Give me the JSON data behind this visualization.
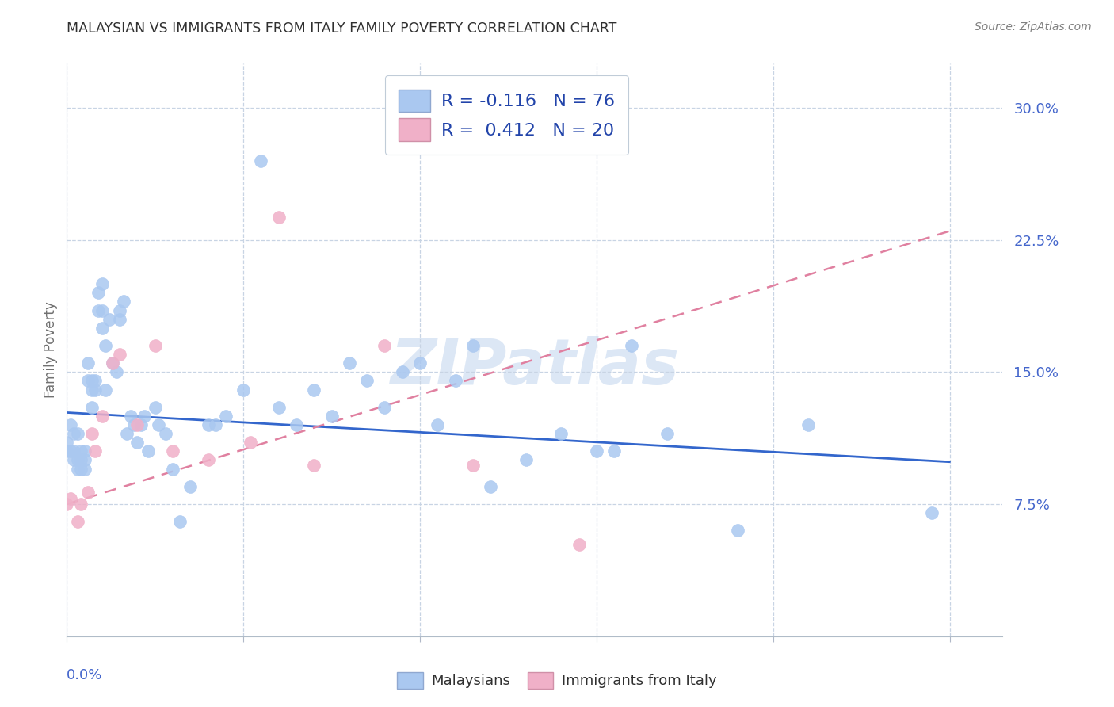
{
  "title": "MALAYSIAN VS IMMIGRANTS FROM ITALY FAMILY POVERTY CORRELATION CHART",
  "source": "Source: ZipAtlas.com",
  "ylabel": "Family Poverty",
  "watermark": "ZIPatlas",
  "r_malaysian": -0.116,
  "n_malaysian": 76,
  "r_italy": 0.412,
  "n_italy": 20,
  "ytick_labels": [
    "7.5%",
    "15.0%",
    "22.5%",
    "30.0%"
  ],
  "ytick_values": [
    0.075,
    0.15,
    0.225,
    0.3
  ],
  "xlim": [
    0.0,
    0.265
  ],
  "ylim": [
    0.0,
    0.325
  ],
  "legend_labels": [
    "Malaysians",
    "Immigrants from Italy"
  ],
  "color_malaysian": "#aac8f0",
  "color_italy": "#f0b0c8",
  "line_color_malaysian": "#3366cc",
  "line_color_italy": "#e080a0",
  "malaysian_x": [
    0.0,
    0.0,
    0.001,
    0.001,
    0.002,
    0.002,
    0.002,
    0.003,
    0.003,
    0.003,
    0.004,
    0.004,
    0.004,
    0.005,
    0.005,
    0.005,
    0.006,
    0.006,
    0.007,
    0.007,
    0.007,
    0.008,
    0.008,
    0.009,
    0.009,
    0.01,
    0.01,
    0.01,
    0.011,
    0.011,
    0.012,
    0.013,
    0.014,
    0.015,
    0.015,
    0.016,
    0.017,
    0.018,
    0.019,
    0.02,
    0.021,
    0.022,
    0.023,
    0.025,
    0.026,
    0.028,
    0.03,
    0.032,
    0.035,
    0.04,
    0.042,
    0.045,
    0.05,
    0.055,
    0.06,
    0.065,
    0.07,
    0.075,
    0.08,
    0.085,
    0.09,
    0.095,
    0.1,
    0.105,
    0.11,
    0.115,
    0.12,
    0.13,
    0.14,
    0.15,
    0.155,
    0.16,
    0.17,
    0.19,
    0.21,
    0.245
  ],
  "malaysian_y": [
    0.11,
    0.105,
    0.12,
    0.105,
    0.115,
    0.105,
    0.1,
    0.1,
    0.115,
    0.095,
    0.105,
    0.095,
    0.1,
    0.095,
    0.1,
    0.105,
    0.155,
    0.145,
    0.14,
    0.13,
    0.145,
    0.14,
    0.145,
    0.185,
    0.195,
    0.2,
    0.185,
    0.175,
    0.165,
    0.14,
    0.18,
    0.155,
    0.15,
    0.18,
    0.185,
    0.19,
    0.115,
    0.125,
    0.12,
    0.11,
    0.12,
    0.125,
    0.105,
    0.13,
    0.12,
    0.115,
    0.095,
    0.065,
    0.085,
    0.12,
    0.12,
    0.125,
    0.14,
    0.27,
    0.13,
    0.12,
    0.14,
    0.125,
    0.155,
    0.145,
    0.13,
    0.15,
    0.155,
    0.12,
    0.145,
    0.165,
    0.085,
    0.1,
    0.115,
    0.105,
    0.105,
    0.165,
    0.115,
    0.06,
    0.12,
    0.07
  ],
  "italy_x": [
    0.0,
    0.001,
    0.003,
    0.004,
    0.006,
    0.007,
    0.008,
    0.01,
    0.013,
    0.015,
    0.02,
    0.025,
    0.03,
    0.04,
    0.052,
    0.06,
    0.07,
    0.09,
    0.115,
    0.145
  ],
  "italy_y": [
    0.075,
    0.078,
    0.065,
    0.075,
    0.082,
    0.115,
    0.105,
    0.125,
    0.155,
    0.16,
    0.12,
    0.165,
    0.105,
    0.1,
    0.11,
    0.238,
    0.097,
    0.165,
    0.097,
    0.052
  ],
  "mal_trendline_x": [
    0.0,
    0.25
  ],
  "mal_trendline_y": [
    0.127,
    0.099
  ],
  "ita_trendline_x": [
    0.0,
    0.25
  ],
  "ita_trendline_y": [
    0.075,
    0.23
  ]
}
